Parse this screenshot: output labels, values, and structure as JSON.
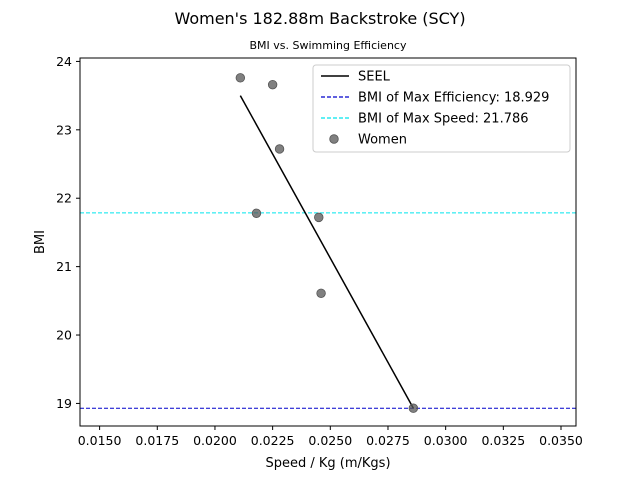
{
  "chart_data": {
    "type": "scatter",
    "title": "Women's 182.88m Backstroke (SCY)",
    "subtitle": "BMI vs. Swimming Efficiency",
    "xlabel": "Speed / Kg (m/Kgs)",
    "ylabel": "BMI",
    "xlim": [
      0.01415,
      0.03565
    ],
    "ylim": [
      18.67,
      24.05
    ],
    "xticks": [
      "0.0150",
      "0.0175",
      "0.0200",
      "0.0225",
      "0.0250",
      "0.0275",
      "0.0300",
      "0.0325",
      "0.0350"
    ],
    "yticks": [
      "19",
      "20",
      "21",
      "22",
      "23",
      "24"
    ],
    "grid": false,
    "legend_position": "top-right",
    "series": [
      {
        "name": "Women",
        "kind": "scatter",
        "color": "#555555",
        "points": [
          {
            "x": 0.0211,
            "y": 23.76
          },
          {
            "x": 0.0225,
            "y": 23.66
          },
          {
            "x": 0.0228,
            "y": 22.72
          },
          {
            "x": 0.0218,
            "y": 21.78
          },
          {
            "x": 0.0245,
            "y": 21.72
          },
          {
            "x": 0.0246,
            "y": 20.61
          },
          {
            "x": 0.0286,
            "y": 18.93
          }
        ]
      },
      {
        "name": "SEEL",
        "kind": "line",
        "color": "#000000",
        "points": [
          {
            "x": 0.0211,
            "y": 23.5
          },
          {
            "x": 0.0286,
            "y": 18.93
          }
        ]
      }
    ],
    "reference_lines": [
      {
        "name": "BMI of Max Efficiency: 18.929",
        "y": 18.929,
        "color": "#0000cc"
      },
      {
        "name": "BMI of Max Speed: 21.786",
        "y": 21.786,
        "color": "#00e5ee"
      }
    ],
    "legend": [
      {
        "label": "SEEL",
        "kind": "line",
        "color": "#000000"
      },
      {
        "label": "BMI of Max Efficiency: 18.929",
        "kind": "dashed",
        "color": "#0000cc"
      },
      {
        "label": "BMI of Max Speed: 21.786",
        "kind": "dashed",
        "color": "#00e5ee"
      },
      {
        "label": "Women",
        "kind": "marker",
        "color": "#555555"
      }
    ]
  }
}
